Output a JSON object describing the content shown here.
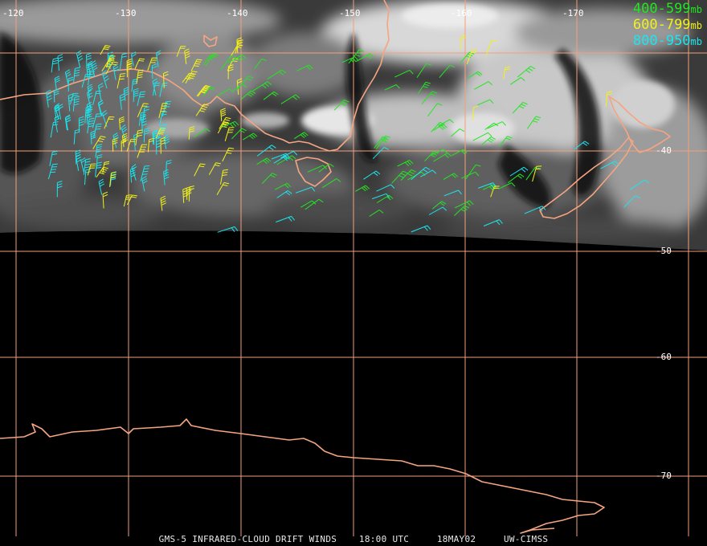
{
  "colors": {
    "grid": "#f2a07a",
    "coast": "#f5a582",
    "label": "#ffffff",
    "green": "#22e622",
    "yellow": "#f2f21a",
    "cyan": "#1ae6f0"
  },
  "legend": [
    {
      "range": "400-599",
      "unit": "mb",
      "color": "#22e622"
    },
    {
      "range": "600-799",
      "unit": "mb",
      "color": "#f2f21a"
    },
    {
      "range": "800-950",
      "unit": "mb",
      "color": "#1ae6f0"
    }
  ],
  "longitude_labels": [
    "-120",
    "-130",
    "-140",
    "-150",
    "-160",
    "-170"
  ],
  "latitude_labels": [
    "-40",
    "-50",
    "-60",
    "-70"
  ],
  "footer": {
    "product": "GMS-5 INFRARED-CLOUD DRIFT WINDS",
    "time": "18:00 UTC",
    "date": "18MAY02",
    "source": "UW-CIMSS"
  }
}
